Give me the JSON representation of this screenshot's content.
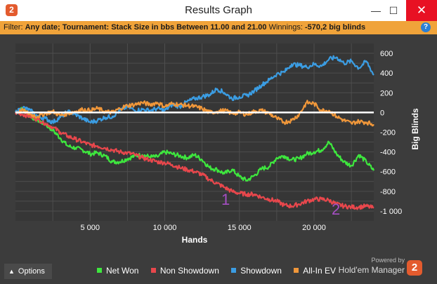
{
  "window": {
    "title": "Results Graph",
    "app_icon": "hm2-app-icon",
    "minimize_glyph": "—",
    "maximize_glyph": "☐",
    "close_glyph": "✕"
  },
  "filter_bar": {
    "prefix": "Filter:",
    "criteria": "Any date; Tournament: Stack Size in bbs  Between 11.00 and 21.00",
    "winnings_label": "Winnings:",
    "winnings_value": "-570,2 big blinds",
    "help_glyph": "?"
  },
  "chart_data": {
    "type": "line",
    "xlabel": "Hands",
    "ylabel": "Big Blinds",
    "xlim": [
      0,
      24000
    ],
    "ylim": [
      -1100,
      700
    ],
    "x_ticks": [
      5000,
      10000,
      15000,
      20000
    ],
    "x_tick_labels": [
      "5 000",
      "10 000",
      "15 000",
      "20 000"
    ],
    "y_ticks": [
      600,
      400,
      200,
      0,
      -200,
      -400,
      -600,
      -800,
      -1000
    ],
    "y_tick_labels": [
      "600",
      "400",
      "200",
      "0",
      "-200",
      "-400",
      "-600",
      "-800",
      "-1 000"
    ],
    "grid": true,
    "zero_line": true,
    "legend_position": "bottom",
    "series": [
      {
        "name": "Net Won",
        "color": "#3ee73e",
        "x": [
          0,
          500,
          1000,
          1500,
          2000,
          2500,
          3000,
          3500,
          4000,
          4500,
          5000,
          5500,
          6000,
          6500,
          7000,
          7500,
          8000,
          8500,
          9000,
          9500,
          10000,
          10500,
          11000,
          11500,
          12000,
          12500,
          13000,
          13500,
          14000,
          14500,
          15000,
          15500,
          16000,
          16500,
          17000,
          17500,
          18000,
          18500,
          19000,
          19500,
          20000,
          20500,
          21000,
          21500,
          22000,
          22500,
          23000,
          23500,
          24000
        ],
        "y": [
          0,
          40,
          -40,
          -80,
          -120,
          -180,
          -260,
          -340,
          -360,
          -380,
          -420,
          -410,
          -440,
          -500,
          -500,
          -470,
          -440,
          -430,
          -450,
          -450,
          -400,
          -420,
          -440,
          -460,
          -430,
          -480,
          -560,
          -580,
          -620,
          -580,
          -650,
          -690,
          -640,
          -570,
          -550,
          -460,
          -440,
          -480,
          -470,
          -420,
          -400,
          -380,
          -300,
          -420,
          -500,
          -540,
          -430,
          -500,
          -590
        ]
      },
      {
        "name": "Non Showdown",
        "color": "#e8474c",
        "x": [
          0,
          500,
          1000,
          1500,
          2000,
          2500,
          3000,
          3500,
          4000,
          4500,
          5000,
          5500,
          6000,
          6500,
          7000,
          7500,
          8000,
          8500,
          9000,
          9500,
          10000,
          10500,
          11000,
          11500,
          12000,
          12500,
          13000,
          13500,
          14000,
          14500,
          15000,
          15500,
          16000,
          16500,
          17000,
          17500,
          18000,
          18500,
          19000,
          19500,
          20000,
          20500,
          21000,
          21500,
          22000,
          22500,
          23000,
          23500,
          24000
        ],
        "y": [
          0,
          -20,
          -40,
          -70,
          -110,
          -150,
          -200,
          -240,
          -270,
          -300,
          -330,
          -340,
          -360,
          -380,
          -400,
          -410,
          -430,
          -460,
          -480,
          -500,
          -510,
          -530,
          -560,
          -580,
          -600,
          -630,
          -680,
          -720,
          -760,
          -800,
          -820,
          -830,
          -830,
          -860,
          -880,
          -900,
          -940,
          -950,
          -930,
          -900,
          -880,
          -880,
          -890,
          -930,
          -950,
          -960,
          -960,
          -950,
          -970
        ]
      },
      {
        "name": "Showdown",
        "color": "#3b9de3",
        "x": [
          0,
          500,
          1000,
          1500,
          2000,
          2500,
          3000,
          3500,
          4000,
          4500,
          5000,
          5500,
          6000,
          6500,
          7000,
          7500,
          8000,
          8500,
          9000,
          9500,
          10000,
          10500,
          11000,
          11500,
          12000,
          12500,
          13000,
          13500,
          14000,
          14500,
          15000,
          15500,
          16000,
          16500,
          17000,
          17500,
          18000,
          18500,
          19000,
          19500,
          20000,
          20500,
          21000,
          21500,
          22000,
          22500,
          23000,
          23500,
          24000
        ],
        "y": [
          0,
          50,
          20,
          -40,
          -60,
          -100,
          -50,
          10,
          -20,
          -60,
          -100,
          -80,
          -50,
          -40,
          20,
          60,
          20,
          30,
          20,
          40,
          20,
          80,
          60,
          110,
          140,
          160,
          180,
          240,
          200,
          140,
          160,
          170,
          220,
          280,
          330,
          390,
          410,
          490,
          480,
          460,
          490,
          470,
          540,
          560,
          500,
          520,
          450,
          520,
          380
        ]
      },
      {
        "name": "All-In EV",
        "color": "#f0973a",
        "x": [
          0,
          500,
          1000,
          1500,
          2000,
          2500,
          3000,
          3500,
          4000,
          4500,
          5000,
          5500,
          6000,
          6500,
          7000,
          7500,
          8000,
          8500,
          9000,
          9500,
          10000,
          10500,
          11000,
          11500,
          12000,
          12500,
          13000,
          13500,
          14000,
          14500,
          15000,
          15500,
          16000,
          16500,
          17000,
          17500,
          18000,
          18500,
          19000,
          19500,
          20000,
          20500,
          21000,
          21500,
          22000,
          22500,
          23000,
          23500,
          24000
        ],
        "y": [
          0,
          20,
          -20,
          -40,
          -10,
          10,
          -30,
          -10,
          10,
          30,
          20,
          40,
          10,
          0,
          40,
          70,
          80,
          100,
          80,
          100,
          60,
          90,
          80,
          70,
          60,
          40,
          0,
          10,
          20,
          -10,
          0,
          -20,
          10,
          20,
          -10,
          -60,
          -100,
          -80,
          -20,
          100,
          90,
          20,
          20,
          -40,
          -80,
          -110,
          -90,
          -100,
          -120
        ]
      }
    ]
  },
  "annotations": {
    "mark_1": "1",
    "mark_2": "2",
    "color": "#a64fc4"
  },
  "footer": {
    "options_label": "Options",
    "options_caret": "▲",
    "legend": [
      {
        "label": "Net Won",
        "color": "#3ee73e"
      },
      {
        "label": "Non Showdown",
        "color": "#e8474c"
      },
      {
        "label": "Showdown",
        "color": "#3b9de3"
      },
      {
        "label": "All-In EV",
        "color": "#f0973a"
      }
    ],
    "powered_by": "Powered by",
    "brand_name": "Hold'em Manager",
    "brand_logo_glyph": "2"
  },
  "colors": {
    "chart_background": "#3c3c3c",
    "plot_background": "#363636",
    "grid": "#4e4e4e",
    "zero_line": "#ffffff",
    "filter_bar": "#f0a33a",
    "close_button": "#e81123",
    "brand": "#e35b2e"
  }
}
